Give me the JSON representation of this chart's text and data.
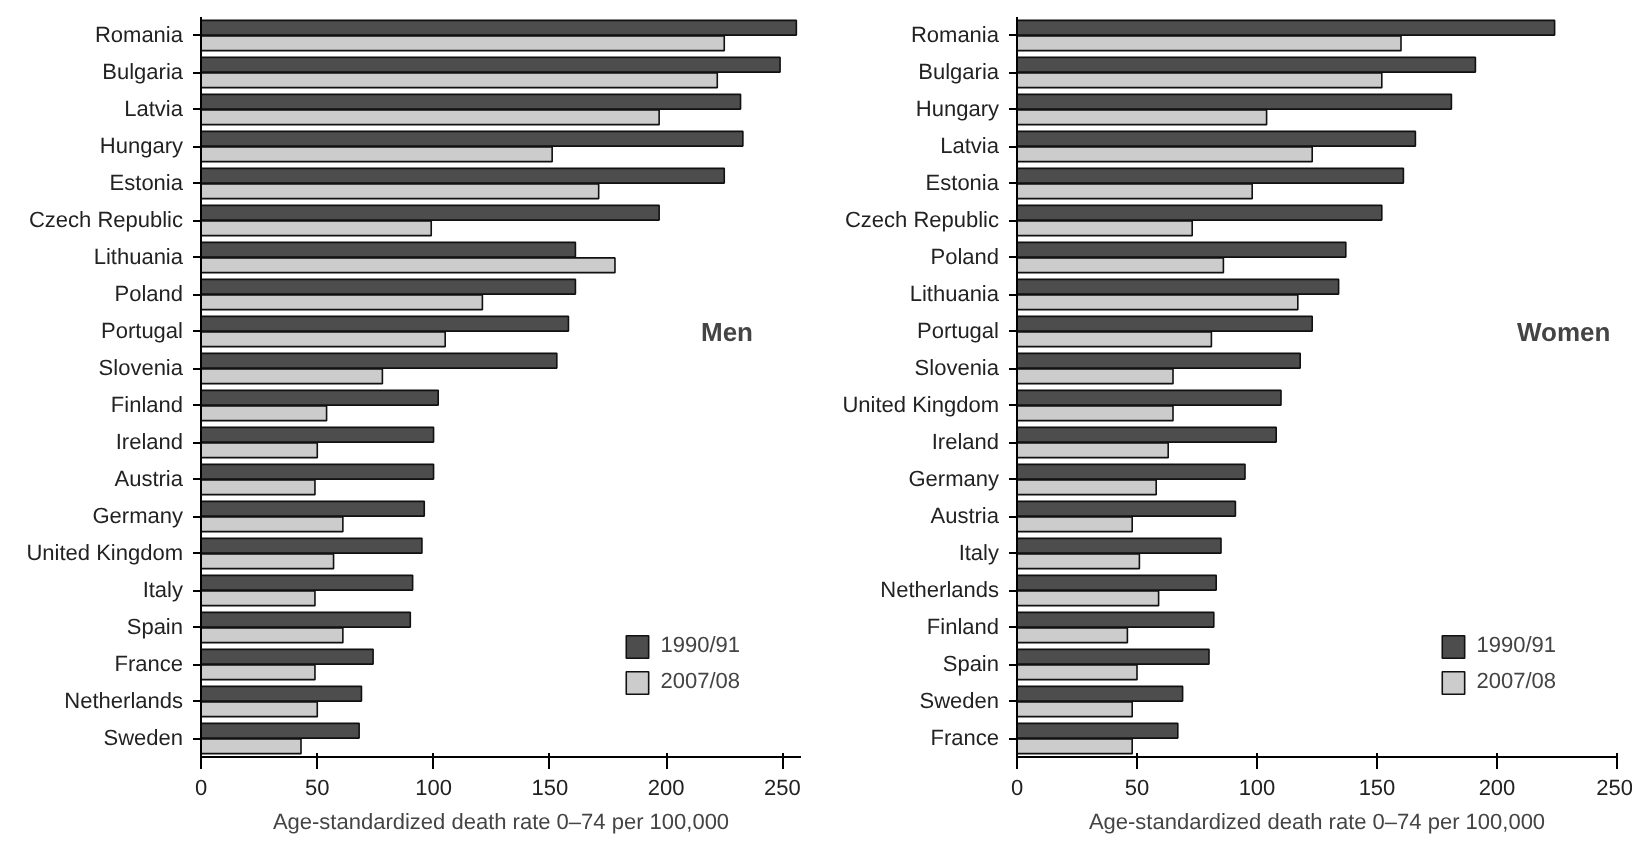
{
  "chart_data": [
    {
      "type": "bar",
      "orientation": "horizontal",
      "title": "Men",
      "xlabel": "Age-standardized death rate 0–74 per 100,000",
      "categories": [
        "Romania",
        "Bulgaria",
        "Latvia",
        "Hungary",
        "Estonia",
        "Czech Republic",
        "Lithuania",
        "Poland",
        "Portugal",
        "Slovenia",
        "Finland",
        "Ireland",
        "Austria",
        "Germany",
        "United Kingdom",
        "Italy",
        "Spain",
        "France",
        "Netherlands",
        "Sweden"
      ],
      "series": [
        {
          "name": "1990/91",
          "color": "#4d4d4d",
          "values": [
            256,
            249,
            232,
            233,
            225,
            197,
            161,
            161,
            158,
            153,
            102,
            100,
            100,
            96,
            95,
            91,
            90,
            74,
            69,
            68
          ]
        },
        {
          "name": "2007/08",
          "color": "#cccccc",
          "values": [
            225,
            222,
            197,
            151,
            171,
            99,
            178,
            121,
            105,
            78,
            54,
            50,
            49,
            61,
            57,
            49,
            61,
            49,
            50,
            43
          ]
        }
      ],
      "xlim": [
        0,
        258
      ],
      "xticks": [
        0,
        50,
        100,
        150,
        200,
        250
      ],
      "grid": false,
      "legend": "bottom right"
    },
    {
      "type": "bar",
      "orientation": "horizontal",
      "title": "Women",
      "xlabel": "Age-standardized death rate 0–74 per 100,000",
      "categories": [
        "Romania",
        "Bulgaria",
        "Hungary",
        "Latvia",
        "Estonia",
        "Czech Republic",
        "Poland",
        "Lithuania",
        "Portugal",
        "Slovenia",
        "United Kingdom",
        "Ireland",
        "Germany",
        "Austria",
        "Italy",
        "Netherlands",
        "Finland",
        "Spain",
        "Sweden",
        "France"
      ],
      "series": [
        {
          "name": "1990/91",
          "color": "#4d4d4d",
          "values": [
            224,
            191,
            181,
            166,
            161,
            152,
            137,
            134,
            123,
            118,
            110,
            108,
            95,
            91,
            85,
            83,
            82,
            80,
            69,
            67
          ]
        },
        {
          "name": "2007/08",
          "color": "#cccccc",
          "values": [
            160,
            152,
            104,
            123,
            98,
            73,
            86,
            117,
            81,
            65,
            65,
            63,
            58,
            48,
            51,
            59,
            46,
            50,
            48,
            48
          ]
        }
      ],
      "xlim": [
        0,
        250
      ],
      "xticks": [
        0,
        50,
        100,
        150,
        200,
        250
      ],
      "grid": false,
      "legend": "bottom right"
    }
  ]
}
